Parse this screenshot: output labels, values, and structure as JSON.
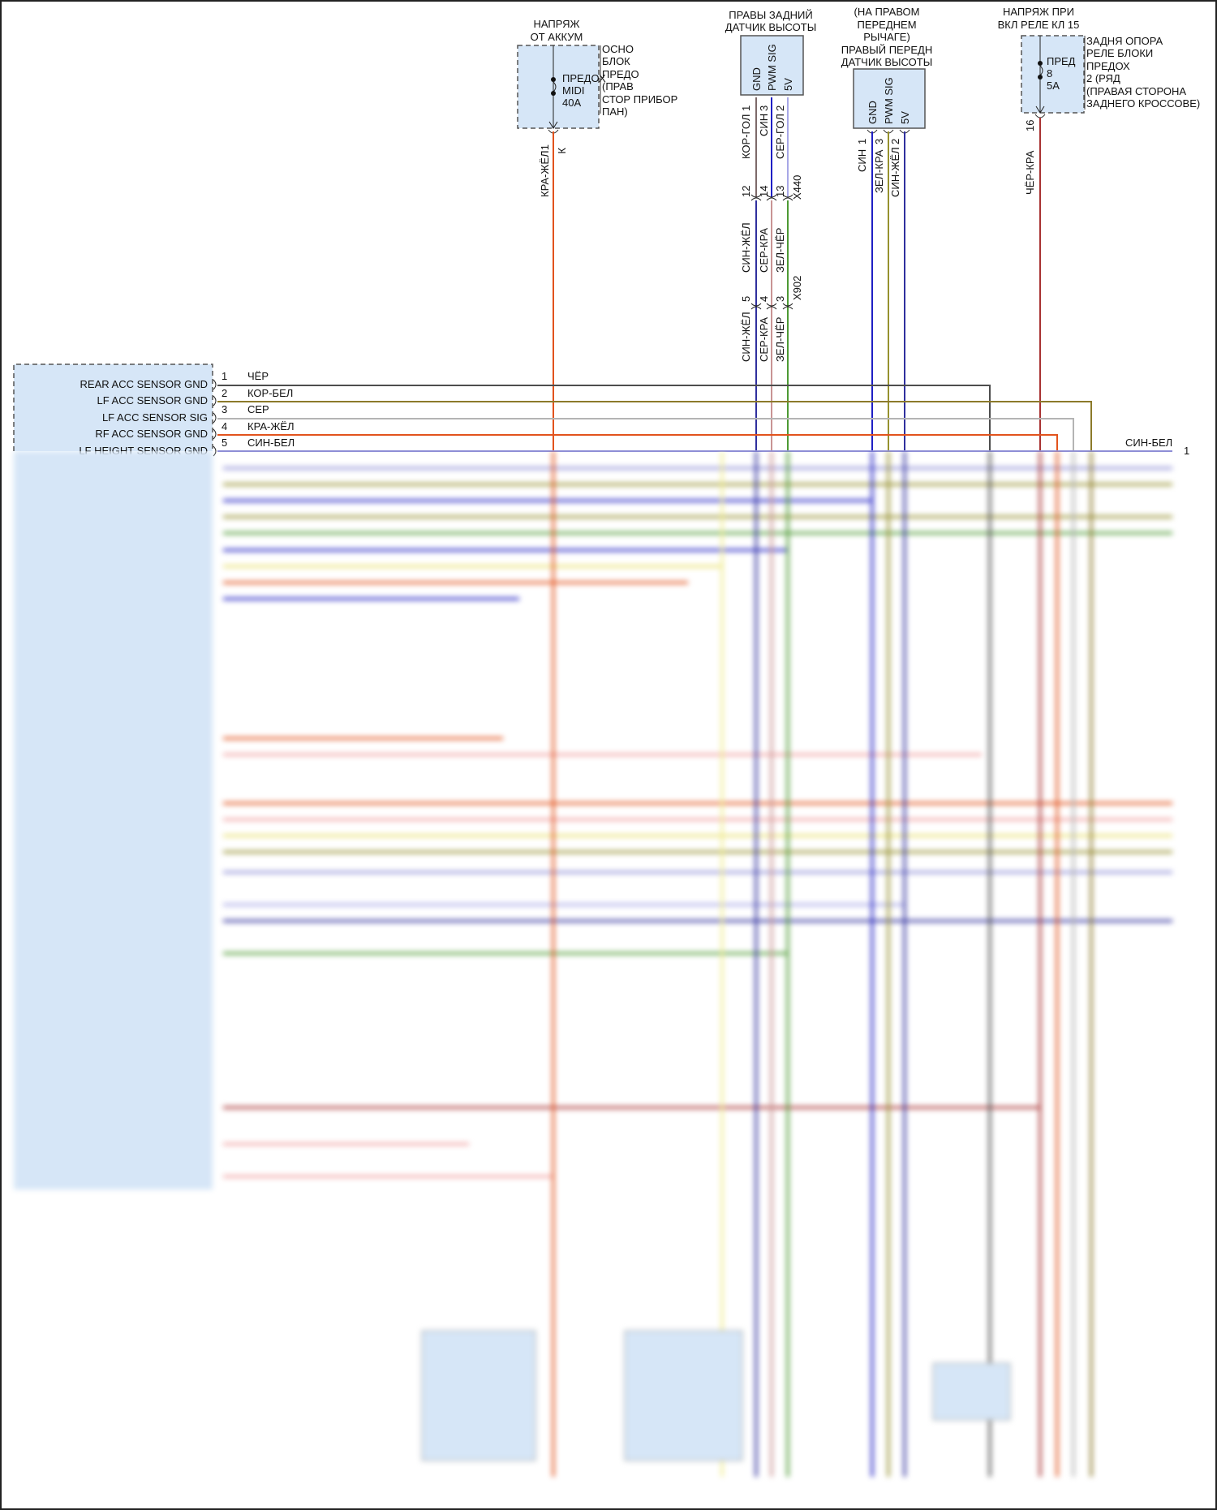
{
  "battery_fuse": {
    "title_lines": [
      "НАПРЯЖ",
      "ОТ АККУМ"
    ],
    "location_lines": [
      "ОСНО",
      "БЛОК",
      "ПРЕДО",
      "(ПРАВ",
      "СТОР ПРИБОР",
      "ПАН)"
    ],
    "fuse_lines": [
      "ПРЕДОХ",
      "MIDI",
      "40A"
    ],
    "pin": "1",
    "pin_letter": "К",
    "wire_label": "КРА-ЖЁЛ"
  },
  "rear_height_sensor": {
    "title_lines": [
      "ПРАВЫ ЗАДНИЙ",
      "ДАТЧИК ВЫСОТЫ"
    ],
    "pins": [
      "GND",
      "PWM SIG",
      "5V"
    ],
    "sensor_pin_numbers": [
      "1",
      "3",
      "2"
    ],
    "sensor_wire_labels": [
      "КОР-ГОЛ",
      "СИН",
      "СЕР-ГОЛ"
    ],
    "x440": {
      "name": "X440",
      "pins": [
        "12",
        "14",
        "13"
      ]
    },
    "mid_wire_labels": [
      "СИН-ЖЁЛ",
      "СЕР-КРА",
      "ЗЕЛ-ЧЁР"
    ],
    "x902": {
      "name": "X902",
      "pins": [
        "5",
        "4",
        "3"
      ]
    },
    "lower_wire_labels": [
      "СИН-ЖЁЛ",
      "СЕР-КРА",
      "ЗЕЛ-ЧЁР"
    ]
  },
  "front_height_sensor": {
    "title_lines": [
      "(НА ПРАВОМ",
      "ПЕРЕДНЕМ",
      "РЫЧАГЕ)",
      "ПРАВЫЙ ПЕРЕДН",
      "ДАТЧИК ВЫСОТЫ"
    ],
    "pins": [
      "GND",
      "PWM SIG",
      "5V"
    ],
    "pin_numbers": [
      "1",
      "3",
      "2"
    ],
    "wire_labels": [
      "СИН",
      "ЗЕЛ-КРА",
      "СИН-ЖЁЛ"
    ]
  },
  "relay_fuse": {
    "title_lines": [
      "НАПРЯЖ ПРИ",
      "ВКЛ РЕЛЕ КЛ 15"
    ],
    "location_lines": [
      "ЗАДНЯ ОПОРА",
      "РЕЛЕ БЛОКИ",
      "ПРЕДОХ",
      "2 (РЯД",
      "(ПРАВАЯ СТОРОНА",
      "ЗАДНЕГО КРОССОВЕ)"
    ],
    "fuse_lines": [
      "ПРЕД",
      "8",
      "5A"
    ],
    "pin": "16",
    "wire_label": "ЧЁР-КРА"
  },
  "control_module": {
    "pins": [
      {
        "label": "REAR ACC SENSOR GND",
        "number": "1",
        "wire": "ЧЁР"
      },
      {
        "label": "LF ACC SENSOR GND",
        "number": "2",
        "wire": "КОР-БЕЛ"
      },
      {
        "label": "LF ACC SENSOR SIG",
        "number": "3",
        "wire": "СЕР"
      },
      {
        "label": "RF ACC SENSOR GND",
        "number": "4",
        "wire": "КРА-ЖЁЛ"
      },
      {
        "label": "LF HEIGHT SENSOR GND",
        "number": "5",
        "wire": "СИН-БЕЛ"
      }
    ],
    "right_edge_label": "СИН-БЕЛ",
    "right_edge_pin": "1"
  },
  "colors": {
    "component_fill": "#d6e6f7",
    "kra_zhel": "#e2531d",
    "chyor": "#4d4d4d",
    "kor_bel": "#8c7a2a",
    "ser": "#b4b4b4",
    "sin_bel": "#8e8ed6",
    "sin": "#1f1fc4",
    "kor_gol": "#7d6a6a",
    "ser_gol": "#a7a7e6",
    "sin_zhel": "#30309e",
    "ser_kra": "#c99494",
    "zel_chyor": "#4d9a34",
    "zel_kra": "#96912f",
    "chyor_kra": "#a83232"
  }
}
